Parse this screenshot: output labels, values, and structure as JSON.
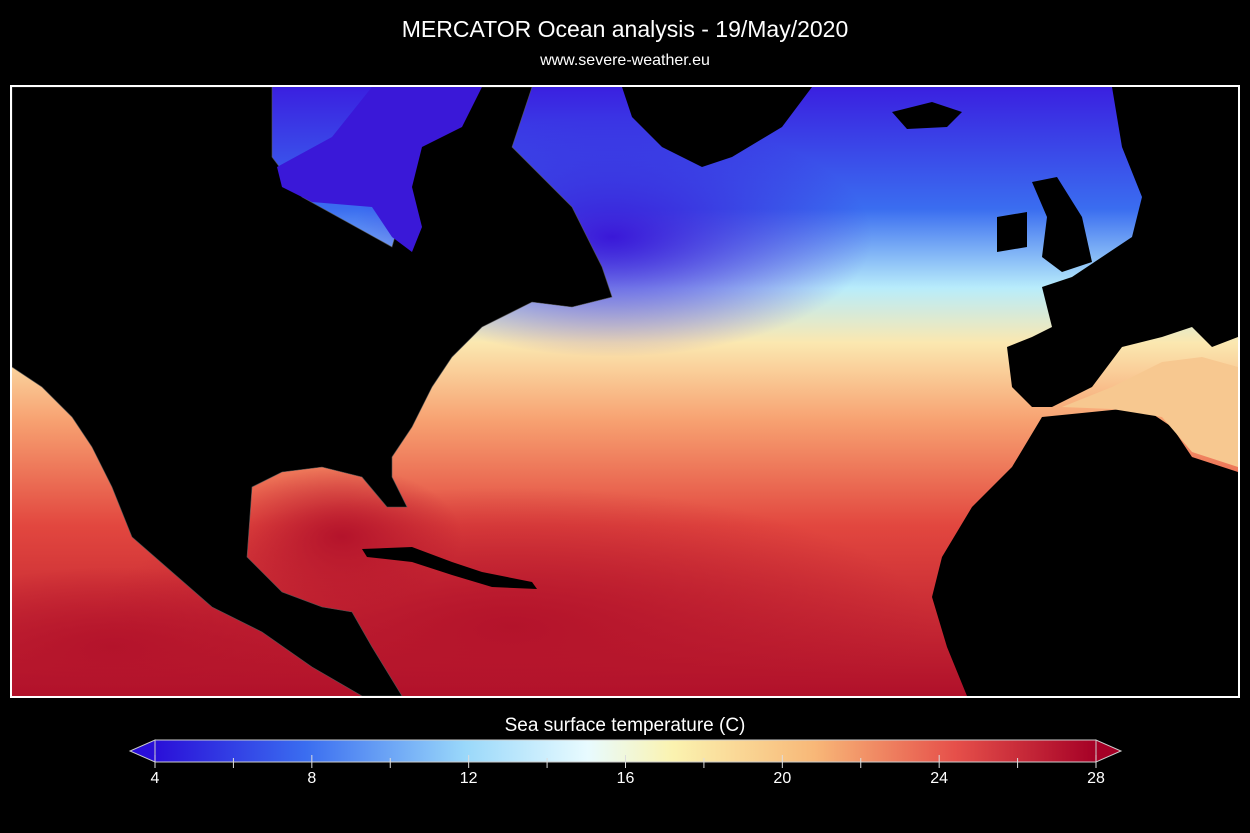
{
  "header": {
    "title": "MERCATOR Ocean analysis  -  19/May/2020",
    "subtitle": "www.severe-weather.eu"
  },
  "map": {
    "variable": "Sea surface temperature",
    "region": "North Atlantic"
  },
  "colorbar": {
    "label": "Sea surface temperature (C)",
    "min": 4,
    "max": 28,
    "ticks": [
      "4",
      "8",
      "12",
      "16",
      "20",
      "24",
      "28"
    ],
    "minor_step": 2,
    "extend": "both",
    "colors": [
      "#2a0fd8",
      "#3a6df0",
      "#7cc4f7",
      "#e8fbff",
      "#fbf3b0",
      "#f8b878",
      "#e6504a",
      "#a50026"
    ]
  }
}
